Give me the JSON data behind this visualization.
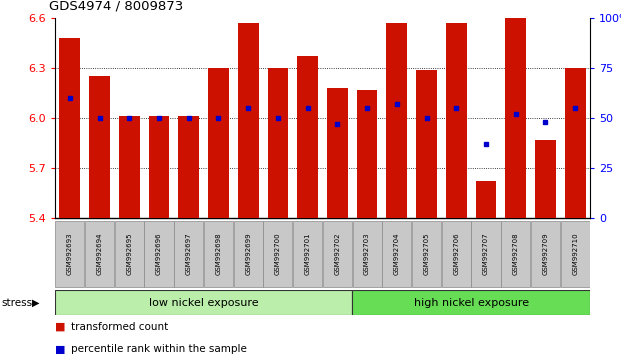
{
  "title": "GDS4974 / 8009873",
  "samples": [
    "GSM992693",
    "GSM992694",
    "GSM992695",
    "GSM992696",
    "GSM992697",
    "GSM992698",
    "GSM992699",
    "GSM992700",
    "GSM992701",
    "GSM992702",
    "GSM992703",
    "GSM992704",
    "GSM992705",
    "GSM992706",
    "GSM992707",
    "GSM992708",
    "GSM992709",
    "GSM992710"
  ],
  "red_values": [
    6.48,
    6.25,
    6.01,
    6.01,
    6.01,
    6.3,
    6.57,
    6.3,
    6.37,
    6.18,
    6.17,
    6.57,
    6.29,
    6.57,
    5.62,
    6.73,
    5.87,
    6.3
  ],
  "blue_pct": [
    60,
    50,
    50,
    50,
    50,
    50,
    55,
    50,
    55,
    47,
    55,
    57,
    50,
    55,
    37,
    52,
    48,
    55
  ],
  "y_min": 5.4,
  "y_max": 6.6,
  "bar_color": "#CC1100",
  "dot_color": "#0000CC",
  "label_bg": "#C8C8C8",
  "group1_label": "low nickel exposure",
  "group2_label": "high nickel exposure",
  "group1_color": "#BBEEAA",
  "group2_color": "#66DD55",
  "group1_count": 10,
  "stress_label": "stress",
  "legend_bar": "transformed count",
  "legend_dot": "percentile rank within the sample",
  "yticks_left": [
    5.4,
    5.7,
    6.0,
    6.3,
    6.6
  ],
  "yticks_right": [
    0,
    25,
    50,
    75,
    100
  ],
  "hlines": [
    5.7,
    6.0,
    6.3
  ]
}
